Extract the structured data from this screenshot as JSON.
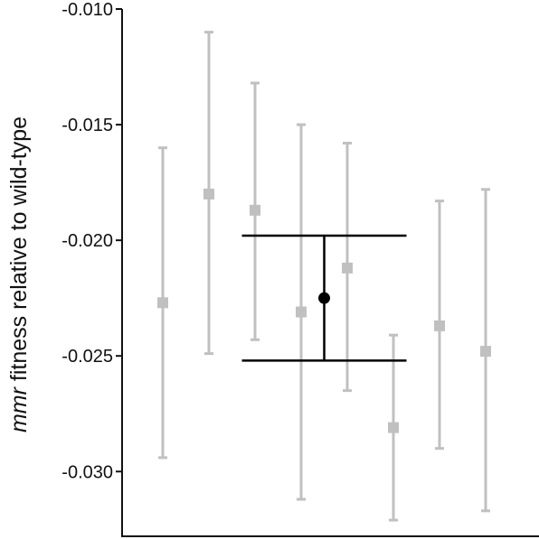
{
  "chart_data": {
    "type": "scatter",
    "title": "",
    "xlabel": "",
    "ylabel_italic": "mmr",
    "ylabel_rest": " fitness relative to wild-type",
    "ylim": [
      -0.0328,
      -0.01
    ],
    "yticks": [
      -0.01,
      -0.015,
      -0.02,
      -0.025,
      -0.03
    ],
    "ytick_labels": [
      "-0.010",
      "-0.015",
      "-0.020",
      "-0.025",
      "-0.030"
    ],
    "grid": false,
    "series": [
      {
        "marker": "square",
        "color": "#c0c0c0",
        "points": [
          {
            "x": 1,
            "y": -0.0227,
            "low": -0.0294,
            "high": -0.016
          },
          {
            "x": 2,
            "y": -0.018,
            "low": -0.0249,
            "high": -0.011
          },
          {
            "x": 3,
            "y": -0.0187,
            "low": -0.0243,
            "high": -0.0132
          },
          {
            "x": 4,
            "y": -0.0231,
            "low": -0.0312,
            "high": -0.015
          },
          {
            "x": 5,
            "y": -0.0212,
            "low": -0.0265,
            "high": -0.0158
          },
          {
            "x": 6,
            "y": -0.0281,
            "low": -0.0321,
            "high": -0.0241
          },
          {
            "x": 7,
            "y": -0.0237,
            "low": -0.029,
            "high": -0.0183
          },
          {
            "x": 8,
            "y": -0.0248,
            "low": -0.0317,
            "high": -0.0178
          }
        ]
      },
      {
        "marker": "circle",
        "color": "#000000",
        "points": [
          {
            "x": 4.5,
            "y": -0.0225,
            "low": -0.0252,
            "high": -0.0198
          }
        ]
      }
    ]
  }
}
